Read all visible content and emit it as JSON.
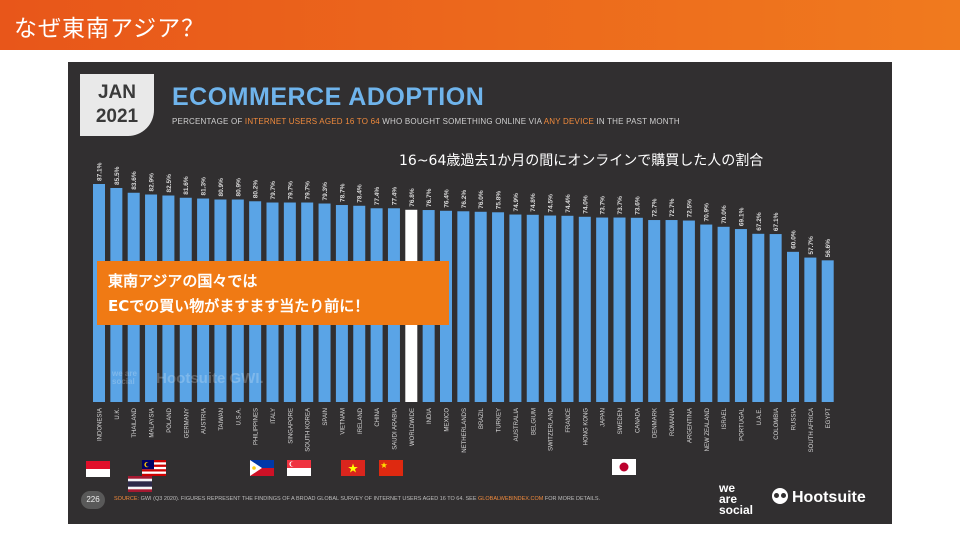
{
  "slide": {
    "title": "なぜ東南アジア？"
  },
  "badge": {
    "month": "JAN",
    "year": "2021"
  },
  "chart_data": {
    "type": "bar",
    "title": "ECOMMERCE ADOPTION",
    "subtitle_parts": [
      "PERCENTAGE OF ",
      "INTERNET USERS AGED 16 TO 64",
      " WHO BOUGHT SOMETHING ONLINE VIA ",
      "ANY DEVICE",
      " IN THE PAST MONTH"
    ],
    "categories": [
      "INDONESIA",
      "U.K.",
      "THAILAND",
      "MALAYSIA",
      "POLAND",
      "GERMANY",
      "AUSTRIA",
      "TAIWAN",
      "U.S.A.",
      "PHILIPPINES",
      "ITALY",
      "SINGAPORE",
      "SOUTH KOREA",
      "SPAIN",
      "VIETNAM",
      "IRELAND",
      "CHINA",
      "SAUDI ARABIA",
      "WORLDWIDE",
      "INDIA",
      "MEXICO",
      "NETHERLANDS",
      "BRAZIL",
      "TURKEY",
      "AUSTRALIA",
      "BELGIUM",
      "SWITZERLAND",
      "FRANCE",
      "HONG KONG",
      "JAPAN",
      "SWEDEN",
      "CANADA",
      "DENMARK",
      "ROMANIA",
      "ARGENTINA",
      "NEW ZEALAND",
      "ISRAEL",
      "PORTUGAL",
      "U.A.E.",
      "COLOMBIA",
      "RUSSIA",
      "SOUTH AFRICA",
      "EGYPT"
    ],
    "values": [
      87.1,
      85.5,
      83.6,
      82.9,
      82.5,
      81.6,
      81.3,
      80.9,
      80.9,
      80.2,
      79.7,
      79.7,
      79.7,
      79.3,
      78.7,
      78.4,
      77.4,
      77.4,
      76.8,
      76.7,
      76.4,
      76.2,
      76.0,
      75.8,
      74.9,
      74.8,
      74.5,
      74.4,
      74.0,
      73.7,
      73.7,
      73.6,
      72.7,
      72.7,
      72.5,
      70.9,
      70.0,
      69.1,
      67.2,
      67.1,
      60.0,
      57.7,
      56.6
    ],
    "value_labels": [
      "87.1%",
      "85.5%",
      "83.6%",
      "82.9%",
      "82.5%",
      "81.6%",
      "81.3%",
      "80.9%",
      "80.9%",
      "80.2%",
      "79.7%",
      "79.7%",
      "79.7%",
      "79.3%",
      "78.7%",
      "78.4%",
      "77.4%",
      "77.4%",
      "76.8%",
      "76.7%",
      "76.4%",
      "76.2%",
      "76.0%",
      "75.8%",
      "74.9%",
      "74.8%",
      "74.5%",
      "74.4%",
      "74.0%",
      "73.7%",
      "73.7%",
      "73.6%",
      "72.7%",
      "72.7%",
      "72.5%",
      "70.9%",
      "70.0%",
      "69.1%",
      "67.2%",
      "67.1%",
      "60.0%",
      "57.7%",
      "56.6%"
    ],
    "highlight_category": "WORLDWIDE",
    "colors": {
      "bar": "#5aa4e6",
      "highlight": "#ffffff",
      "label": "#d9d9d9",
      "background": "#312f30",
      "title": "#6fb4ec",
      "accent": "#f08a3c"
    }
  },
  "annotation": {
    "text": "16~64歳過去1か月の間にオンラインで購買した人の割合"
  },
  "callout": {
    "line1": "東南アジアの国々では",
    "line2": "ECでの買い物がますます当たり前に！",
    "color": "#f07a14"
  },
  "footer": {
    "page_number": "226",
    "source_label": "SOURCE:",
    "source_text": " GWI (Q3 2020). FIGURES REPRESENT THE FINDINGS OF A BROAD GLOBAL SURVEY OF INTERNET USERS AGED 16 TO 64. SEE ",
    "source_link": "GLOBALWEBINDEX.COM",
    "source_tail": " FOR MORE DETAILS."
  },
  "logos": {
    "we_are_social": [
      "we",
      "are",
      "social"
    ],
    "hootsuite": "Hootsuite"
  },
  "watermark": {
    "left": "we are social",
    "right": "Hootsuite GWI."
  },
  "flags": [
    {
      "country": "INDONESIA",
      "icon": "indonesia-flag-icon"
    },
    {
      "country": "MALAYSIA",
      "icon": "malaysia-flag-icon"
    },
    {
      "country": "THAILAND",
      "icon": "thailand-flag-icon"
    },
    {
      "country": "PHILIPPINES",
      "icon": "philippines-flag-icon"
    },
    {
      "country": "SINGAPORE",
      "icon": "singapore-flag-icon"
    },
    {
      "country": "VIETNAM",
      "icon": "vietnam-flag-icon"
    },
    {
      "country": "CHINA",
      "icon": "china-flag-icon"
    },
    {
      "country": "JAPAN",
      "icon": "japan-flag-icon"
    }
  ]
}
